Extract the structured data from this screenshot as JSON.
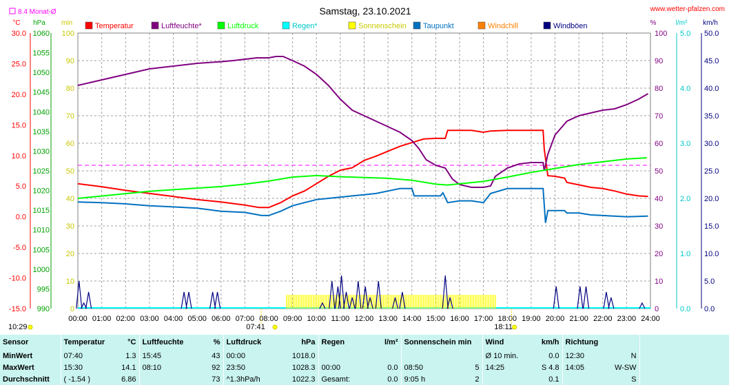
{
  "site": "www.wetter-pfalzen.com",
  "chart_data": {
    "type": "line",
    "title": "Samstag, 23.10.2021",
    "monthly_avg_label": "8.4 Monat-Ø",
    "monthly_avg_temp": 8.4,
    "x_ticks": [
      "00:00",
      "01:00",
      "02:00",
      "03:00",
      "04:00",
      "05:00",
      "06:00",
      "07:00",
      "08:00",
      "09:00",
      "10:00",
      "11:00",
      "12:00",
      "13:00",
      "14:00",
      "15:00",
      "16:00",
      "17:00",
      "18:00",
      "19:00",
      "20:00",
      "21:00",
      "22:00",
      "23:00",
      "24:00"
    ],
    "sunrise": "07:41",
    "sunset": "18:11",
    "footer_time": "10:29",
    "axes": {
      "temp": {
        "unit": "°C",
        "min": -15,
        "max": 30,
        "ticks": [
          "30.0",
          "25.0",
          "20.0",
          "15.0",
          "10.0",
          "5.0",
          "0.0",
          "-5.0",
          "-10.0",
          "-15.0"
        ],
        "color": "#ff0000"
      },
      "pressure": {
        "unit": "hPa",
        "min": 990,
        "max": 1060,
        "ticks": [
          "1060",
          "1055",
          "1050",
          "1045",
          "1040",
          "1035",
          "1030",
          "1025",
          "1020",
          "1015",
          "1010",
          "1005",
          "1000",
          "995",
          "990"
        ],
        "color": "#00a000"
      },
      "sun_min": {
        "unit": "min",
        "min": 0,
        "max": 100,
        "ticks": [
          "100",
          "90",
          "80",
          "70",
          "60",
          "50",
          "40",
          "30",
          "20",
          "10",
          "0"
        ],
        "color": "#c8c800"
      },
      "humidity": {
        "unit": "%",
        "min": 0,
        "max": 100,
        "ticks": [
          "100",
          "90",
          "80",
          "70",
          "60",
          "50",
          "40",
          "30",
          "20",
          "10",
          "0"
        ],
        "color": "#800080"
      },
      "rain": {
        "unit": "l/m²",
        "min": 0,
        "max": 5,
        "ticks": [
          "5.0",
          "4.0",
          "3.0",
          "2.0",
          "1.0",
          "0.0"
        ],
        "color": "#00c8c8"
      },
      "wind": {
        "unit": "km/h",
        "min": 0,
        "max": 50,
        "ticks": [
          "50.0",
          "45.0",
          "40.0",
          "35.0",
          "30.0",
          "25.0",
          "20.0",
          "15.0",
          "10.0",
          "5.0",
          "0.0"
        ],
        "color": "#000080"
      }
    },
    "legend": [
      {
        "name": "Temperatur",
        "color": "#ff0000"
      },
      {
        "name": "Luftfeuchte*",
        "color": "#800080"
      },
      {
        "name": "Luftdruck",
        "color": "#00ff00"
      },
      {
        "name": "Regen*",
        "color": "#00ffff"
      },
      {
        "name": "Sonnenschein",
        "color": "#ffff00"
      },
      {
        "name": "Taupunkt",
        "color": "#0070c0"
      },
      {
        "name": "Windchill",
        "color": "#ff8000"
      },
      {
        "name": "Windböen",
        "color": "#000080"
      }
    ],
    "series": [
      {
        "name": "Temperatur",
        "axis": "temp",
        "color": "#ff0000",
        "points": [
          [
            0,
            5.4
          ],
          [
            1,
            4.9
          ],
          [
            2,
            4.3
          ],
          [
            3,
            3.8
          ],
          [
            4,
            3.3
          ],
          [
            5,
            2.8
          ],
          [
            6,
            2.4
          ],
          [
            7,
            1.9
          ],
          [
            7.6,
            1.5
          ],
          [
            8,
            1.5
          ],
          [
            8.5,
            2.3
          ],
          [
            9,
            3.4
          ],
          [
            9.5,
            4.2
          ],
          [
            10,
            5.4
          ],
          [
            10.5,
            6.6
          ],
          [
            11,
            7.6
          ],
          [
            11.5,
            8.0
          ],
          [
            12,
            9.2
          ],
          [
            12.5,
            9.9
          ],
          [
            13,
            10.7
          ],
          [
            13.5,
            11.5
          ],
          [
            14,
            12.1
          ],
          [
            14.5,
            12.7
          ],
          [
            15,
            12.8
          ],
          [
            15.4,
            12.8
          ],
          [
            15.5,
            14.1
          ],
          [
            16,
            14.1
          ],
          [
            16.5,
            14.1
          ],
          [
            17,
            13.8
          ],
          [
            17.3,
            14.0
          ],
          [
            18,
            14.1
          ],
          [
            19,
            14.1
          ],
          [
            19.5,
            14.1
          ],
          [
            19.55,
            11.0
          ],
          [
            19.7,
            6.7
          ],
          [
            20,
            6.6
          ],
          [
            20.4,
            6.3
          ],
          [
            20.5,
            5.6
          ],
          [
            21,
            5.2
          ],
          [
            21.5,
            4.8
          ],
          [
            22,
            4.6
          ],
          [
            22.5,
            4.2
          ],
          [
            23,
            3.7
          ],
          [
            23.5,
            3.4
          ],
          [
            23.9,
            3.3
          ]
        ]
      },
      {
        "name": "Luftfeuchte*",
        "axis": "humidity",
        "color": "#800080",
        "points": [
          [
            0,
            81
          ],
          [
            0.5,
            82
          ],
          [
            1,
            83
          ],
          [
            1.5,
            84
          ],
          [
            2,
            85
          ],
          [
            2.5,
            86
          ],
          [
            3,
            87
          ],
          [
            3.5,
            87.5
          ],
          [
            4,
            88
          ],
          [
            4.5,
            88.5
          ],
          [
            5,
            89
          ],
          [
            5.5,
            89.3
          ],
          [
            6,
            89.6
          ],
          [
            6.5,
            90
          ],
          [
            7,
            90.5
          ],
          [
            7.5,
            91
          ],
          [
            8,
            91
          ],
          [
            8.3,
            91.5
          ],
          [
            8.6,
            91.5
          ],
          [
            9,
            90
          ],
          [
            9.5,
            88
          ],
          [
            10,
            85
          ],
          [
            10.5,
            81
          ],
          [
            11,
            76
          ],
          [
            11.5,
            72
          ],
          [
            12,
            70
          ],
          [
            12.5,
            68
          ],
          [
            13,
            66
          ],
          [
            13.5,
            64
          ],
          [
            14,
            61
          ],
          [
            14.3,
            58
          ],
          [
            14.6,
            54
          ],
          [
            15,
            52
          ],
          [
            15.4,
            51
          ],
          [
            15.7,
            47
          ],
          [
            16,
            45
          ],
          [
            16.5,
            44
          ],
          [
            17,
            44
          ],
          [
            17.3,
            44.5
          ],
          [
            17.5,
            48
          ],
          [
            18,
            51
          ],
          [
            18.5,
            52.5
          ],
          [
            19,
            53
          ],
          [
            19.5,
            53
          ],
          [
            19.55,
            50
          ],
          [
            19.7,
            56
          ],
          [
            20,
            63
          ],
          [
            20.5,
            68
          ],
          [
            21,
            70
          ],
          [
            21.5,
            71
          ],
          [
            22,
            72
          ],
          [
            22.5,
            72.5
          ],
          [
            23,
            74
          ],
          [
            23.5,
            76
          ],
          [
            23.9,
            78
          ]
        ]
      },
      {
        "name": "Luftdruck",
        "axis": "pressure",
        "color": "#00ff00",
        "points": [
          [
            0,
            1018.0
          ],
          [
            1,
            1018.6
          ],
          [
            2,
            1019.2
          ],
          [
            3,
            1019.8
          ],
          [
            4,
            1020.2
          ],
          [
            5,
            1020.6
          ],
          [
            6,
            1021.0
          ],
          [
            7,
            1021.6
          ],
          [
            8,
            1022.4
          ],
          [
            9,
            1023.4
          ],
          [
            10,
            1023.8
          ],
          [
            11,
            1023.5
          ],
          [
            12,
            1023.3
          ],
          [
            13,
            1023.1
          ],
          [
            14,
            1022.6
          ],
          [
            15,
            1021.6
          ],
          [
            15.5,
            1021.4
          ],
          [
            16,
            1021.7
          ],
          [
            17,
            1022.3
          ],
          [
            18,
            1023.4
          ],
          [
            19,
            1024.6
          ],
          [
            20,
            1025.6
          ],
          [
            21,
            1026.6
          ],
          [
            22,
            1027.3
          ],
          [
            23,
            1028.0
          ],
          [
            23.85,
            1028.3
          ]
        ]
      },
      {
        "name": "Taupunkt",
        "axis": "temp",
        "color": "#0070c0",
        "points": [
          [
            0,
            2.4
          ],
          [
            1,
            2.3
          ],
          [
            2,
            2.1
          ],
          [
            3,
            1.8
          ],
          [
            4,
            1.6
          ],
          [
            5,
            1.4
          ],
          [
            6,
            0.9
          ],
          [
            7,
            0.7
          ],
          [
            7.7,
            0.2
          ],
          [
            8,
            0.2
          ],
          [
            8.5,
            0.9
          ],
          [
            9,
            1.8
          ],
          [
            9.5,
            2.3
          ],
          [
            10,
            2.8
          ],
          [
            10.5,
            3.0
          ],
          [
            11,
            3.2
          ],
          [
            11.5,
            3.4
          ],
          [
            12,
            3.6
          ],
          [
            12.5,
            3.8
          ],
          [
            13,
            4.2
          ],
          [
            13.5,
            4.6
          ],
          [
            14,
            4.6
          ],
          [
            14.1,
            3.4
          ],
          [
            14.5,
            3.4
          ],
          [
            15,
            3.4
          ],
          [
            15.2,
            3.4
          ],
          [
            15.3,
            3.9
          ],
          [
            15.5,
            2.3
          ],
          [
            16,
            2.6
          ],
          [
            16.5,
            2.6
          ],
          [
            17,
            2.3
          ],
          [
            17.3,
            3.8
          ],
          [
            18,
            4.6
          ],
          [
            18.5,
            4.6
          ],
          [
            19,
            4.6
          ],
          [
            19.5,
            4.6
          ],
          [
            19.6,
            -1.0
          ],
          [
            19.7,
            1.0
          ],
          [
            20,
            1.0
          ],
          [
            20.4,
            1.0
          ],
          [
            20.5,
            0.6
          ],
          [
            21,
            0.6
          ],
          [
            21.5,
            0.3
          ],
          [
            22,
            0.2
          ],
          [
            23,
            0.0
          ],
          [
            23.9,
            0.1
          ]
        ]
      }
    ],
    "sunshine_minutes": {
      "start": 8.75,
      "end": 17.75,
      "gap": [
        17.55,
        17.72
      ],
      "value": 5
    },
    "wind_gusts": [
      [
        0.05,
        5
      ],
      [
        0.25,
        1
      ],
      [
        0.45,
        3
      ],
      [
        4.45,
        3
      ],
      [
        4.65,
        3
      ],
      [
        5.65,
        3
      ],
      [
        5.85,
        3
      ],
      [
        10.25,
        1
      ],
      [
        10.65,
        5
      ],
      [
        10.9,
        4
      ],
      [
        11.05,
        6
      ],
      [
        11.25,
        3
      ],
      [
        11.5,
        2
      ],
      [
        11.75,
        5
      ],
      [
        12.05,
        4
      ],
      [
        12.25,
        2
      ],
      [
        12.6,
        5
      ],
      [
        13.3,
        2
      ],
      [
        13.6,
        3
      ],
      [
        15.4,
        6
      ],
      [
        15.6,
        2
      ],
      [
        20.05,
        4
      ],
      [
        21.05,
        4
      ],
      [
        21.3,
        4
      ],
      [
        22.15,
        3
      ],
      [
        22.35,
        2
      ],
      [
        23.65,
        1
      ]
    ]
  },
  "stats": {
    "headers": {
      "sensor": "Sensor",
      "temperatur": "Temperatur",
      "temp_unit": "°C",
      "luftfeuchte": "Luftfeuchte",
      "lf_unit": "%",
      "luftdruck": "Luftdruck",
      "ld_unit": "hPa",
      "regen": "Regen",
      "regen_unit": "l/m²",
      "sonnenschein": "Sonnenschein min",
      "wind": "Wind",
      "wind_unit": "km/h",
      "richtung": "Richtung"
    },
    "rows": [
      {
        "label": "MinWert",
        "temp_time": "07:40",
        "temp_val": "1.3",
        "lf_time": "15:45",
        "lf_val": "43",
        "ld_time": "00:00",
        "ld_val": "1018.0",
        "regen_time": "",
        "regen_val": "",
        "sun_time": "",
        "sun_val": "",
        "wind_time": "Ø 10 min.",
        "wind_val": "0.0",
        "dir_time": "12:30",
        "dir_val": "N"
      },
      {
        "label": "MaxWert",
        "temp_time": "15:30",
        "temp_val": "14.1",
        "lf_time": "08:10",
        "lf_val": "92",
        "ld_time": "23:50",
        "ld_val": "1028.3",
        "regen_time": "00:00",
        "regen_val": "0.0",
        "sun_time": "08:50",
        "sun_val": "5",
        "wind_time": "14:25",
        "wind_val": "S 4.8",
        "dir_time": "14:05",
        "dir_val": "W-SW"
      },
      {
        "label": "Durchschnitt",
        "temp_time": "( -1.54 )",
        "temp_val": "6.86",
        "lf_time": "",
        "lf_val": "73",
        "ld_time": "^1.3hPa/h",
        "ld_val": "1022.3",
        "regen_time": "Gesamt:",
        "regen_val": "0.0",
        "sun_time": "9:05 h",
        "sun_val": "2",
        "wind_time": "",
        "wind_val": "0.1",
        "dir_time": "",
        "dir_val": "S"
      }
    ]
  }
}
